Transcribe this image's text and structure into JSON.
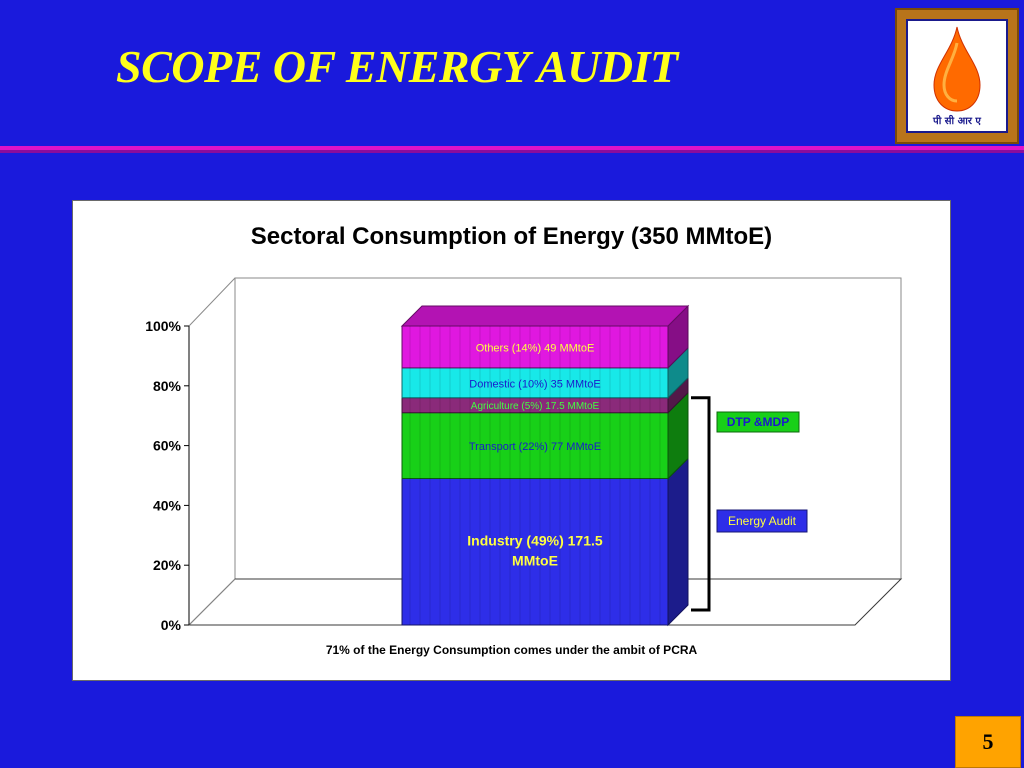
{
  "slide": {
    "title": "SCOPE OF ENERGY AUDIT",
    "page_number": "5",
    "logo": {
      "text": "पी सी आर ए"
    }
  },
  "colors": {
    "background": "#1a1adc",
    "title": "#ffff1a",
    "rule": "#e012c8",
    "page_box": "#ffa300",
    "industry": "#2e2ee8",
    "transport": "#18d018",
    "agriculture": "#8a2a7a",
    "domestic": "#18e8e8",
    "others": "#e018e0"
  },
  "chart_data": {
    "type": "bar",
    "stacked": true,
    "three_d": true,
    "title": "Sectoral Consumption of Energy (350 MMtoE)",
    "footnote": "71% of the  Energy Consumption comes under the ambit of PCRA",
    "y_ticks": [
      "0%",
      "20%",
      "40%",
      "60%",
      "80%",
      "100%"
    ],
    "ylim": [
      0,
      100
    ],
    "series": [
      {
        "name": "Industry",
        "value": 49,
        "label": "Industry (49%) 171.5 MMtoE",
        "color": "#2e2ee8",
        "label_color": "#ffff40"
      },
      {
        "name": "Transport",
        "value": 22,
        "label": "Transport (22%)  77 MMtoE",
        "color": "#18d018",
        "label_color": "#1a1acc"
      },
      {
        "name": "Agriculture",
        "value": 5,
        "label": "Agriculture (5%) 17.5 MMtoE",
        "color": "#8a2a7a",
        "label_color": "#40ff40"
      },
      {
        "name": "Domestic",
        "value": 10,
        "label": "Domestic (10%) 35 MMtoE",
        "color": "#18e8e8",
        "label_color": "#1a1acc"
      },
      {
        "name": "Others",
        "value": 14,
        "label": "Others (14%) 49 MMtoE",
        "color": "#e018e0",
        "label_color": "#ffff40"
      }
    ],
    "annotations": [
      {
        "text": "DTP &MDP",
        "bracket_range": [
          49,
          76
        ],
        "background": "#18d018",
        "text_color": "#1a1acc"
      },
      {
        "text": "Energy Audit",
        "bracket_range": [
          0,
          49
        ],
        "background": "#2e2ee8",
        "text_color": "#ffff40"
      }
    ]
  }
}
